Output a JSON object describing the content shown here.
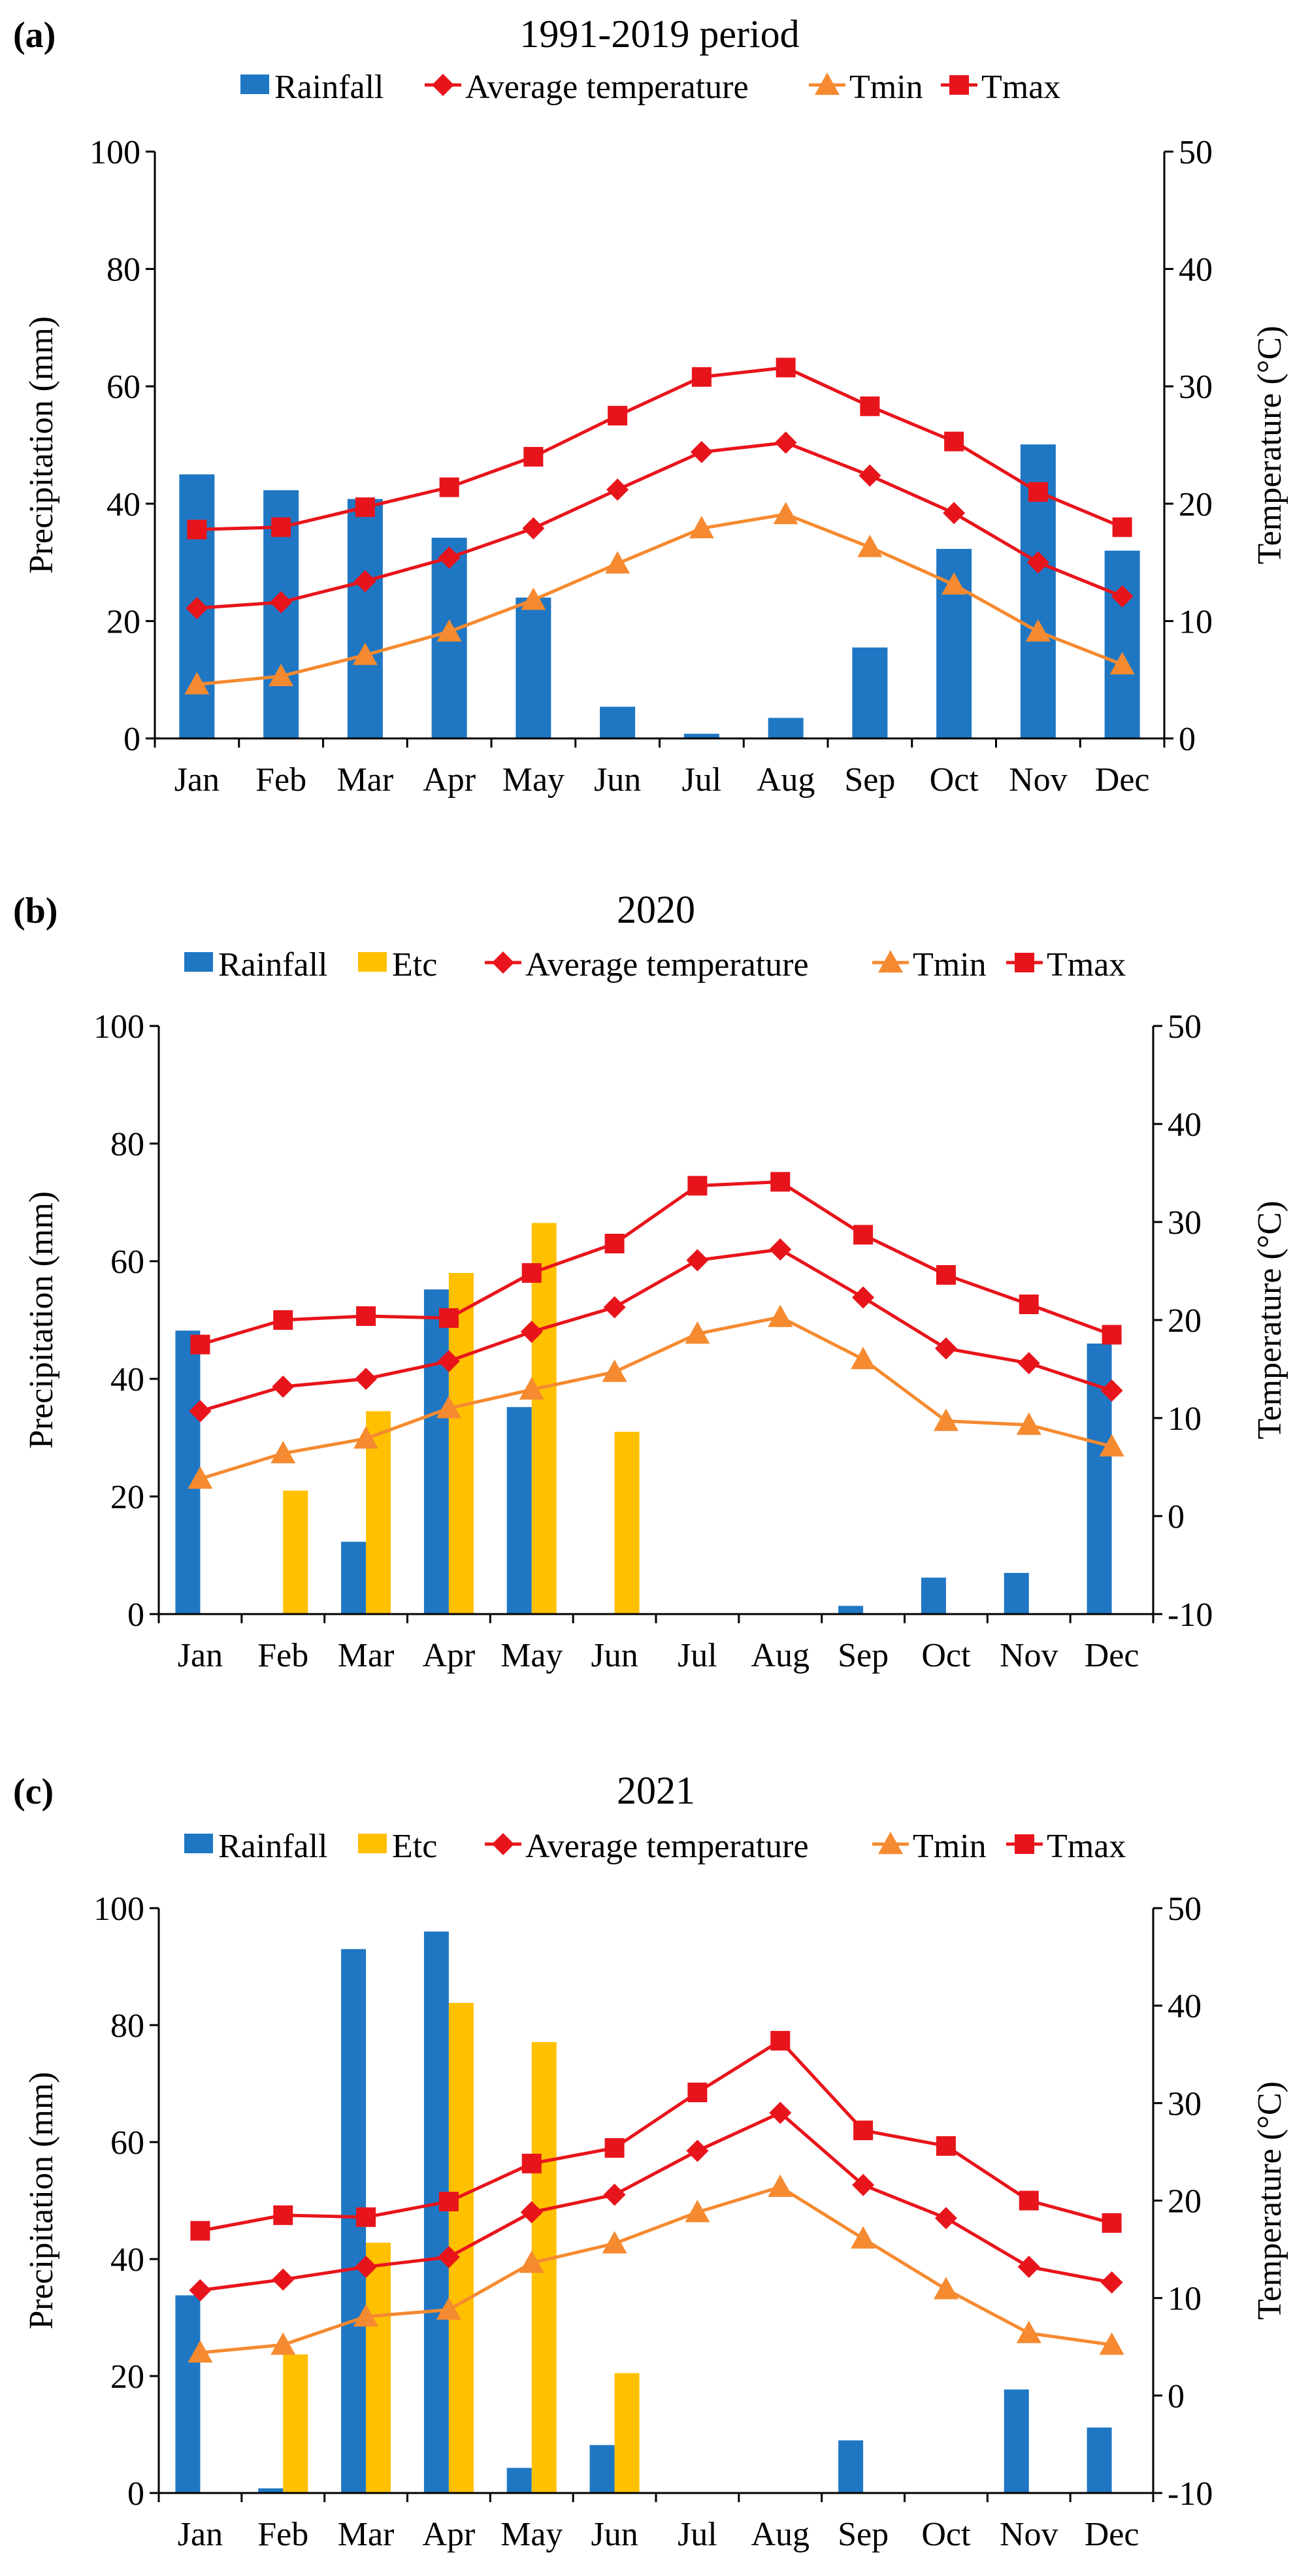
{
  "chart_data": [
    {
      "type": "bar",
      "panel": "(a)",
      "title": "1991-2019 period",
      "categories": [
        "Jan",
        "Feb",
        "Mar",
        "Apr",
        "May",
        "Jun",
        "Jul",
        "Aug",
        "Sep",
        "Oct",
        "Nov",
        "Dec"
      ],
      "ylabel": "Precipitation (mm)",
      "y2label": "Temperature (°C)",
      "ylim": [
        0,
        100
      ],
      "y2lim": [
        0,
        50
      ],
      "yticks": [
        "0",
        "20",
        "40",
        "60",
        "80",
        "100"
      ],
      "y2ticks": [
        "0",
        "10",
        "20",
        "30",
        "40",
        "50"
      ],
      "legend": [
        {
          "name": "Rainfall",
          "kind": "bar",
          "color": "#1f77c4"
        },
        {
          "name": "Average temperature",
          "kind": "diamond",
          "color": "#e8141b"
        },
        {
          "name": "Tmin",
          "kind": "triangle",
          "color": "#f58a30"
        },
        {
          "name": "Tmax",
          "kind": "square",
          "color": "#e8141b"
        }
      ],
      "bars": [
        {
          "name": "Rainfall",
          "color": "#1f77c4",
          "values": [
            45,
            42.3,
            40.8,
            34.2,
            24,
            5.4,
            0.8,
            3.5,
            15.5,
            32.3,
            50.1,
            32
          ]
        }
      ],
      "lines": [
        {
          "name": "Average temperature",
          "color": "#e8141b",
          "marker": "diamond",
          "values": [
            11.1,
            11.6,
            13.4,
            15.4,
            17.9,
            21.2,
            24.4,
            25.2,
            22.4,
            19.2,
            15,
            12.1
          ]
        },
        {
          "name": "Tmin",
          "color": "#f58a30",
          "marker": "triangle",
          "values": [
            4.6,
            5.3,
            7.1,
            9.1,
            11.8,
            14.9,
            17.9,
            19.1,
            16.3,
            13.1,
            9.1,
            6.3
          ]
        },
        {
          "name": "Tmax",
          "color": "#e8141b",
          "marker": "square",
          "values": [
            17.8,
            18,
            19.7,
            21.4,
            24,
            27.5,
            30.8,
            31.6,
            28.3,
            25.3,
            21,
            18
          ]
        }
      ]
    },
    {
      "type": "bar",
      "panel": "(b)",
      "title": "2020",
      "categories": [
        "Jan",
        "Feb",
        "Mar",
        "Apr",
        "May",
        "Jun",
        "Jul",
        "Aug",
        "Sep",
        "Oct",
        "Nov",
        "Dec"
      ],
      "ylabel": "Precipitation (mm)",
      "y2label": "Temperature (°C)",
      "ylim": [
        0,
        100
      ],
      "y2lim": [
        -10,
        50
      ],
      "yticks": [
        "0",
        "20",
        "40",
        "60",
        "80",
        "100"
      ],
      "y2ticks": [
        "-10",
        "0",
        "10",
        "20",
        "30",
        "40",
        "50"
      ],
      "legend": [
        {
          "name": "Rainfall",
          "kind": "bar",
          "color": "#1f77c4"
        },
        {
          "name": "Etc",
          "kind": "bar",
          "color": "#ffc000"
        },
        {
          "name": "Average temperature",
          "kind": "diamond",
          "color": "#e8141b"
        },
        {
          "name": "Tmin",
          "kind": "triangle",
          "color": "#f58a30"
        },
        {
          "name": "Tmax",
          "kind": "square",
          "color": "#e8141b"
        }
      ],
      "bars": [
        {
          "name": "Rainfall",
          "color": "#1f77c4",
          "values": [
            48.2,
            0,
            12.3,
            55.2,
            35.2,
            0,
            0,
            0,
            1.4,
            6.2,
            7,
            46
          ]
        },
        {
          "name": "Etc",
          "color": "#ffc000",
          "values": [
            0,
            21,
            34.5,
            58,
            66.5,
            31,
            0,
            0,
            0,
            0,
            0,
            0
          ]
        }
      ],
      "lines": [
        {
          "name": "Average temperature",
          "color": "#e8141b",
          "marker": "diamond",
          "values": [
            10.7,
            13.2,
            14,
            15.8,
            18.8,
            21.3,
            26.1,
            27.2,
            22.3,
            17.1,
            15.6,
            12.8
          ]
        },
        {
          "name": "Tmin",
          "color": "#f58a30",
          "marker": "triangle",
          "values": [
            3.8,
            6.4,
            7.9,
            11,
            12.9,
            14.7,
            18.6,
            20.3,
            16,
            9.7,
            9.3,
            7.1
          ]
        },
        {
          "name": "Tmax",
          "color": "#e8141b",
          "marker": "square",
          "values": [
            17.5,
            20,
            20.4,
            20.2,
            24.8,
            27.8,
            33.7,
            34.1,
            28.7,
            24.6,
            21.6,
            18.5
          ]
        }
      ]
    },
    {
      "type": "bar",
      "panel": "(c)",
      "title": "2021",
      "categories": [
        "Jan",
        "Feb",
        "Mar",
        "Apr",
        "May",
        "Jun",
        "Jul",
        "Aug",
        "Sep",
        "Oct",
        "Nov",
        "Dec"
      ],
      "ylabel": "Precipitation (mm)",
      "y2label": "Temperature (°C)",
      "ylim": [
        0,
        100
      ],
      "y2lim": [
        -10,
        50
      ],
      "yticks": [
        "0",
        "20",
        "40",
        "60",
        "80",
        "100"
      ],
      "y2ticks": [
        "-10",
        "0",
        "10",
        "20",
        "30",
        "40",
        "50"
      ],
      "legend": [
        {
          "name": "Rainfall",
          "kind": "bar",
          "color": "#1f77c4"
        },
        {
          "name": "Etc",
          "kind": "bar",
          "color": "#ffc000"
        },
        {
          "name": "Average temperature",
          "kind": "diamond",
          "color": "#e8141b"
        },
        {
          "name": "Tmin",
          "kind": "triangle",
          "color": "#f58a30"
        },
        {
          "name": "Tmax",
          "kind": "square",
          "color": "#e8141b"
        }
      ],
      "bars": [
        {
          "name": "Rainfall",
          "color": "#1f77c4",
          "values": [
            33.8,
            0.8,
            93,
            96,
            4.3,
            8.2,
            0,
            0,
            9,
            0,
            17.7,
            11.2
          ]
        },
        {
          "name": "Etc",
          "color": "#ffc000",
          "values": [
            0,
            23.7,
            42.8,
            83.8,
            77.1,
            20.5,
            0,
            0,
            0,
            0,
            0,
            0
          ]
        }
      ],
      "lines": [
        {
          "name": "Average temperature",
          "color": "#e8141b",
          "marker": "diamond",
          "values": [
            10.8,
            11.9,
            13.2,
            14.2,
            18.8,
            20.6,
            25.1,
            29,
            21.6,
            18.2,
            13.2,
            11.6
          ]
        },
        {
          "name": "Tmin",
          "color": "#f58a30",
          "marker": "triangle",
          "values": [
            4.4,
            5.2,
            8.1,
            8.8,
            13.6,
            15.6,
            18.8,
            21.4,
            16.1,
            10.9,
            6.4,
            5.2
          ]
        },
        {
          "name": "Tmax",
          "color": "#e8141b",
          "marker": "square",
          "values": [
            16.9,
            18.5,
            18.3,
            19.9,
            23.8,
            25.4,
            31.1,
            36.4,
            27.2,
            25.6,
            20,
            17.7
          ]
        }
      ]
    }
  ]
}
